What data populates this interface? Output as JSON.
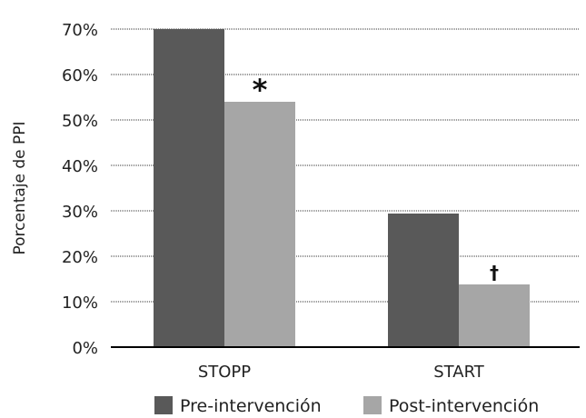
{
  "chart_data": {
    "type": "bar",
    "title": "",
    "xlabel": "",
    "ylabel": "Porcentaje de PPI",
    "categories": [
      "STOPP",
      "START"
    ],
    "series": [
      {
        "name": "Pre-intervención",
        "values": [
          70,
          29.4
        ],
        "color": "#595959"
      },
      {
        "name": "Post-intervención",
        "values": [
          54,
          13.8
        ],
        "color": "#a6a6a6"
      }
    ],
    "ylim": [
      0,
      70
    ],
    "yticks": [
      0,
      10,
      20,
      30,
      40,
      50,
      60,
      70
    ],
    "ytick_labels": [
      "0%",
      "10%",
      "20%",
      "30%",
      "40%",
      "50%",
      "60%",
      "70%"
    ],
    "grid": "horizontal dotted",
    "legend_position": "bottom",
    "annotations": [
      {
        "category": "STOPP",
        "series": "Post-intervención",
        "text": "*"
      },
      {
        "category": "START",
        "series": "Post-intervención",
        "text": "†"
      }
    ]
  }
}
